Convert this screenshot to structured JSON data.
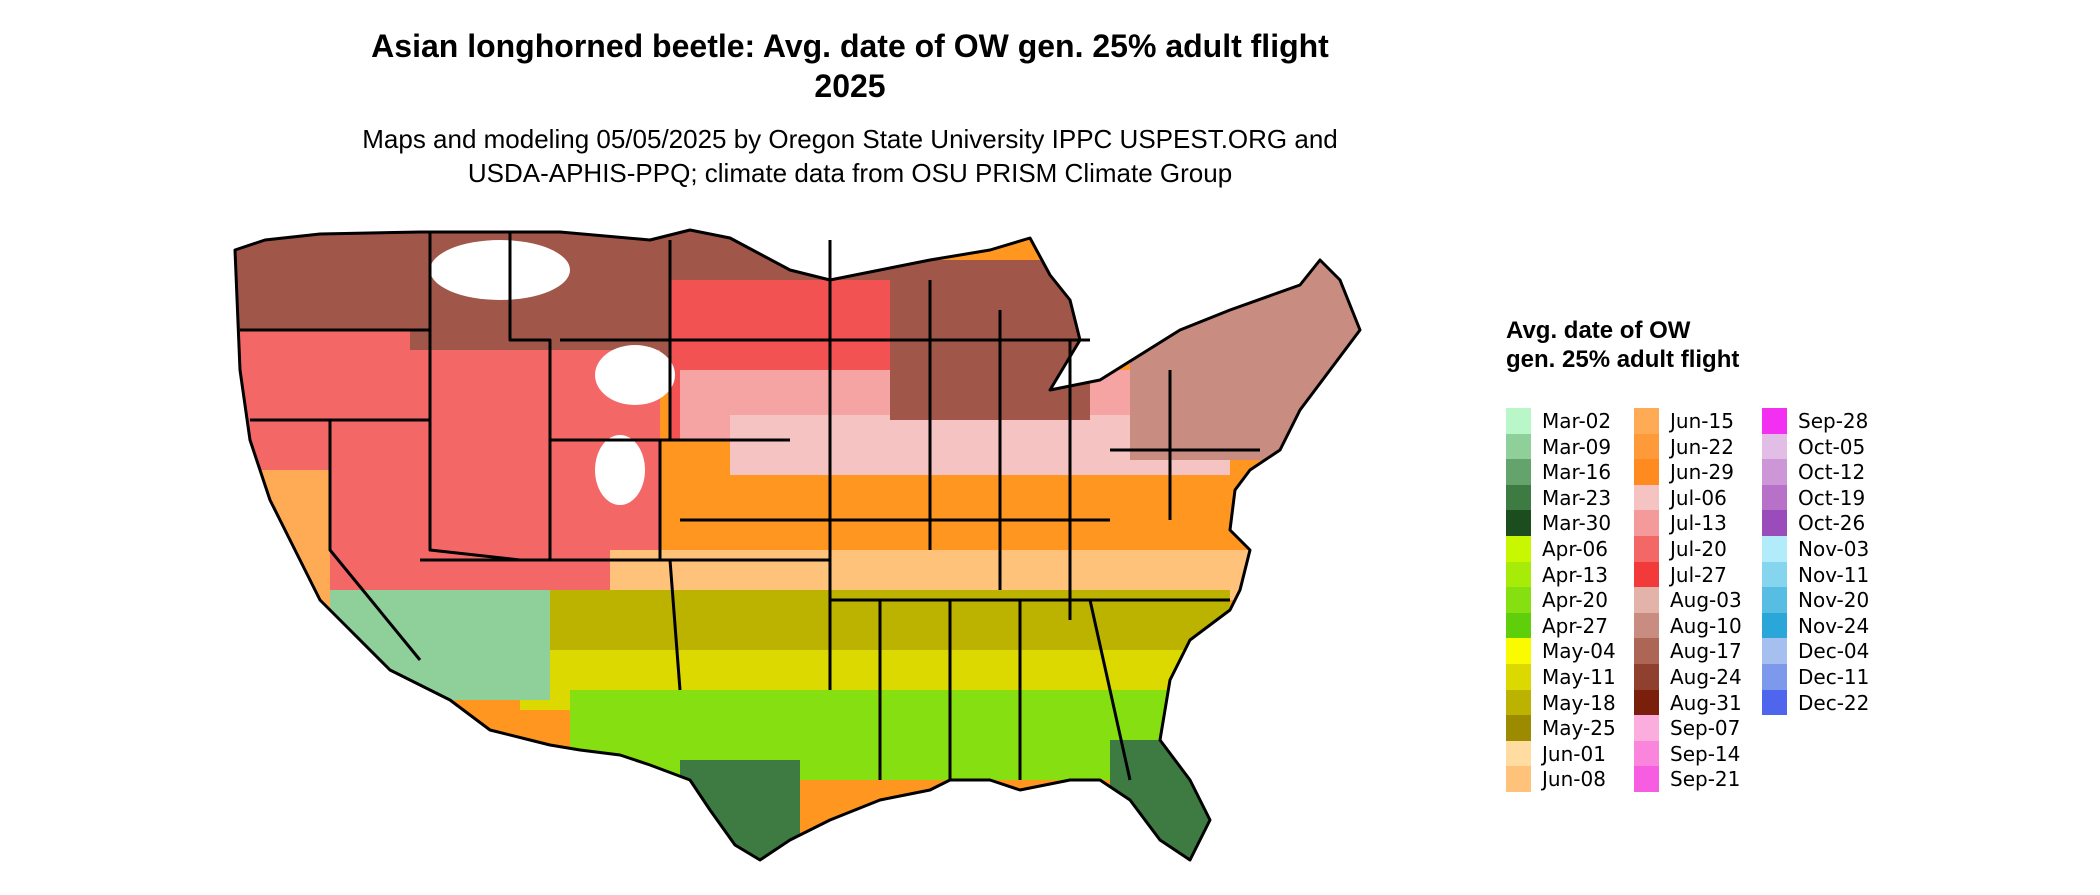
{
  "title": {
    "line1": "Asian longhorned beetle: Avg. date of OW gen. 25% adult flight",
    "line2": "2025"
  },
  "subtitle": {
    "line1": "Maps and modeling 05/05/2025 by Oregon State University IPPC USPEST.ORG and",
    "line2": "USDA-APHIS-PPQ; climate data from OSU PRISM Climate Group"
  },
  "legend": {
    "title": "Avg. date of OW gen. 25% adult flight",
    "columns": [
      [
        {
          "label": "Mar-02",
          "color": "#b9f7c9"
        },
        {
          "label": "Mar-09",
          "color": "#8fcf99"
        },
        {
          "label": "Mar-16",
          "color": "#64a46c"
        },
        {
          "label": "Mar-23",
          "color": "#3d7b43"
        },
        {
          "label": "Mar-30",
          "color": "#1b4d1e"
        },
        {
          "label": "Apr-06",
          "color": "#c8f700"
        },
        {
          "label": "Apr-13",
          "color": "#a6ec08"
        },
        {
          "label": "Apr-20",
          "color": "#86df10"
        },
        {
          "label": "Apr-27",
          "color": "#5ecf0a"
        },
        {
          "label": "May-04",
          "color": "#fafa00"
        },
        {
          "label": "May-11",
          "color": "#dbd900"
        },
        {
          "label": "May-18",
          "color": "#bbb300"
        },
        {
          "label": "May-25",
          "color": "#9c8a00"
        },
        {
          "label": "Jun-01",
          "color": "#ffdca0"
        },
        {
          "label": "Jun-08",
          "color": "#ffc27a"
        }
      ],
      [
        {
          "label": "Jun-15",
          "color": "#ffab55"
        },
        {
          "label": "Jun-22",
          "color": "#ff9a3a"
        },
        {
          "label": "Jun-29",
          "color": "#ff8a1f"
        },
        {
          "label": "Jul-06",
          "color": "#f6c3c3"
        },
        {
          "label": "Jul-13",
          "color": "#f59a9a"
        },
        {
          "label": "Jul-20",
          "color": "#f46767"
        },
        {
          "label": "Jul-27",
          "color": "#f23a3a"
        },
        {
          "label": "Aug-03",
          "color": "#e3b2a8"
        },
        {
          "label": "Aug-10",
          "color": "#c98c80"
        },
        {
          "label": "Aug-17",
          "color": "#ad6556"
        },
        {
          "label": "Aug-24",
          "color": "#90402f"
        },
        {
          "label": "Aug-31",
          "color": "#7a1f0c"
        },
        {
          "label": "Sep-07",
          "color": "#fbaede"
        },
        {
          "label": "Sep-14",
          "color": "#f985dc"
        },
        {
          "label": "Sep-21",
          "color": "#f65de1"
        }
      ],
      [
        {
          "label": "Sep-28",
          "color": "#f32ff2"
        },
        {
          "label": "Oct-05",
          "color": "#e2bde5"
        },
        {
          "label": "Oct-12",
          "color": "#cd96d7"
        },
        {
          "label": "Oct-19",
          "color": "#b771c8"
        },
        {
          "label": "Oct-26",
          "color": "#9b4cbb"
        },
        {
          "label": "Nov-03",
          "color": "#b2ecfb"
        },
        {
          "label": "Nov-11",
          "color": "#86d5ee"
        },
        {
          "label": "Nov-20",
          "color": "#58bde3"
        },
        {
          "label": "Nov-24",
          "color": "#2aa6d8"
        },
        {
          "label": "Dec-04",
          "color": "#a5c0ee"
        },
        {
          "label": "Dec-11",
          "color": "#7c99eb"
        },
        {
          "label": "Dec-22",
          "color": "#5065ee"
        }
      ]
    ]
  },
  "map": {
    "region_colors": {
      "north_rockies": "#a0574a",
      "north_plains": "#f25252",
      "northern_tier": "#f5a3a3",
      "midwest": "#f6c3c3",
      "central": "#ff961f",
      "mid_south": "#ffc27a",
      "south": "#bbb300",
      "gulf": "#dbd900",
      "texas_coast": "#86df10",
      "florida_south": "#3d7b43",
      "sw_desert": "#8fcf99",
      "new_england": "#c98c80",
      "high_mountain": "#ffffff",
      "west_coast": "#f46767",
      "ca_valley": "#ffab55"
    }
  }
}
